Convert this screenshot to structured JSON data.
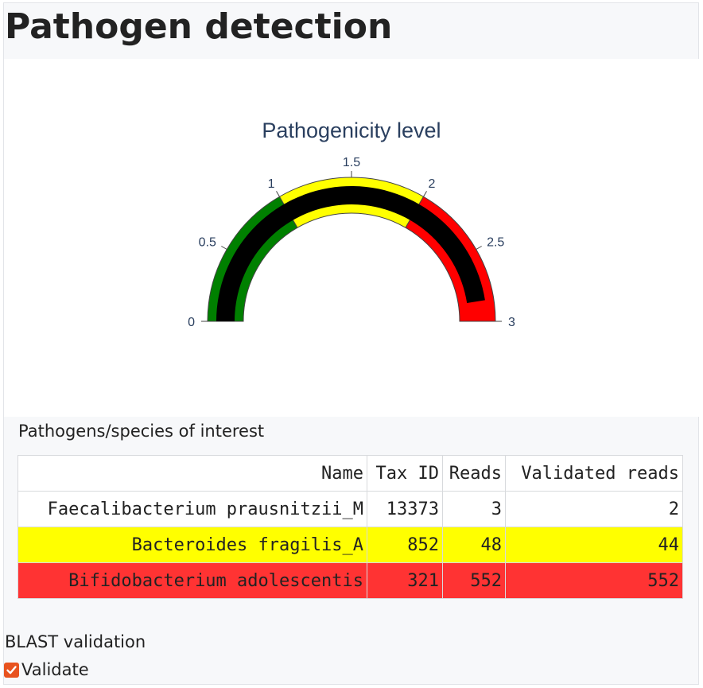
{
  "page": {
    "title": "Pathogen detection"
  },
  "chart_data": {
    "type": "gauge",
    "title": "Pathogenicity level",
    "value": 2.85,
    "range": [
      0,
      3
    ],
    "ticks": [
      "0",
      "0.5",
      "1",
      "1.5",
      "2",
      "2.5",
      "3"
    ],
    "tick_values": [
      0,
      0.5,
      1,
      1.5,
      2,
      2.5,
      3
    ],
    "bands": [
      {
        "from": 0,
        "to": 1,
        "color": "#008000"
      },
      {
        "from": 1,
        "to": 2,
        "color": "#ffff00"
      },
      {
        "from": 2,
        "to": 3,
        "color": "#ff0000"
      }
    ],
    "bar_color": "#000000"
  },
  "pathogens": {
    "label": "Pathogens/species of interest",
    "columns": [
      "Name",
      "Tax ID",
      "Reads",
      "Validated reads"
    ],
    "rows": [
      {
        "cells": [
          "Faecalibacterium prausnitzii_M",
          "13373",
          "3",
          "2"
        ],
        "bg": "#ffffff",
        "fg": "#222222"
      },
      {
        "cells": [
          "Bacteroides fragilis_A",
          "852",
          "48",
          "44"
        ],
        "bg": "#ffff00",
        "fg": "#222222"
      },
      {
        "cells": [
          "Bifidobacterium adolescentis",
          "321",
          "552",
          "552"
        ],
        "bg": "#ff3333",
        "fg": "#222222"
      }
    ]
  },
  "blast": {
    "label": "BLAST validation",
    "validate_label": "Validate",
    "validate_checked": true
  }
}
